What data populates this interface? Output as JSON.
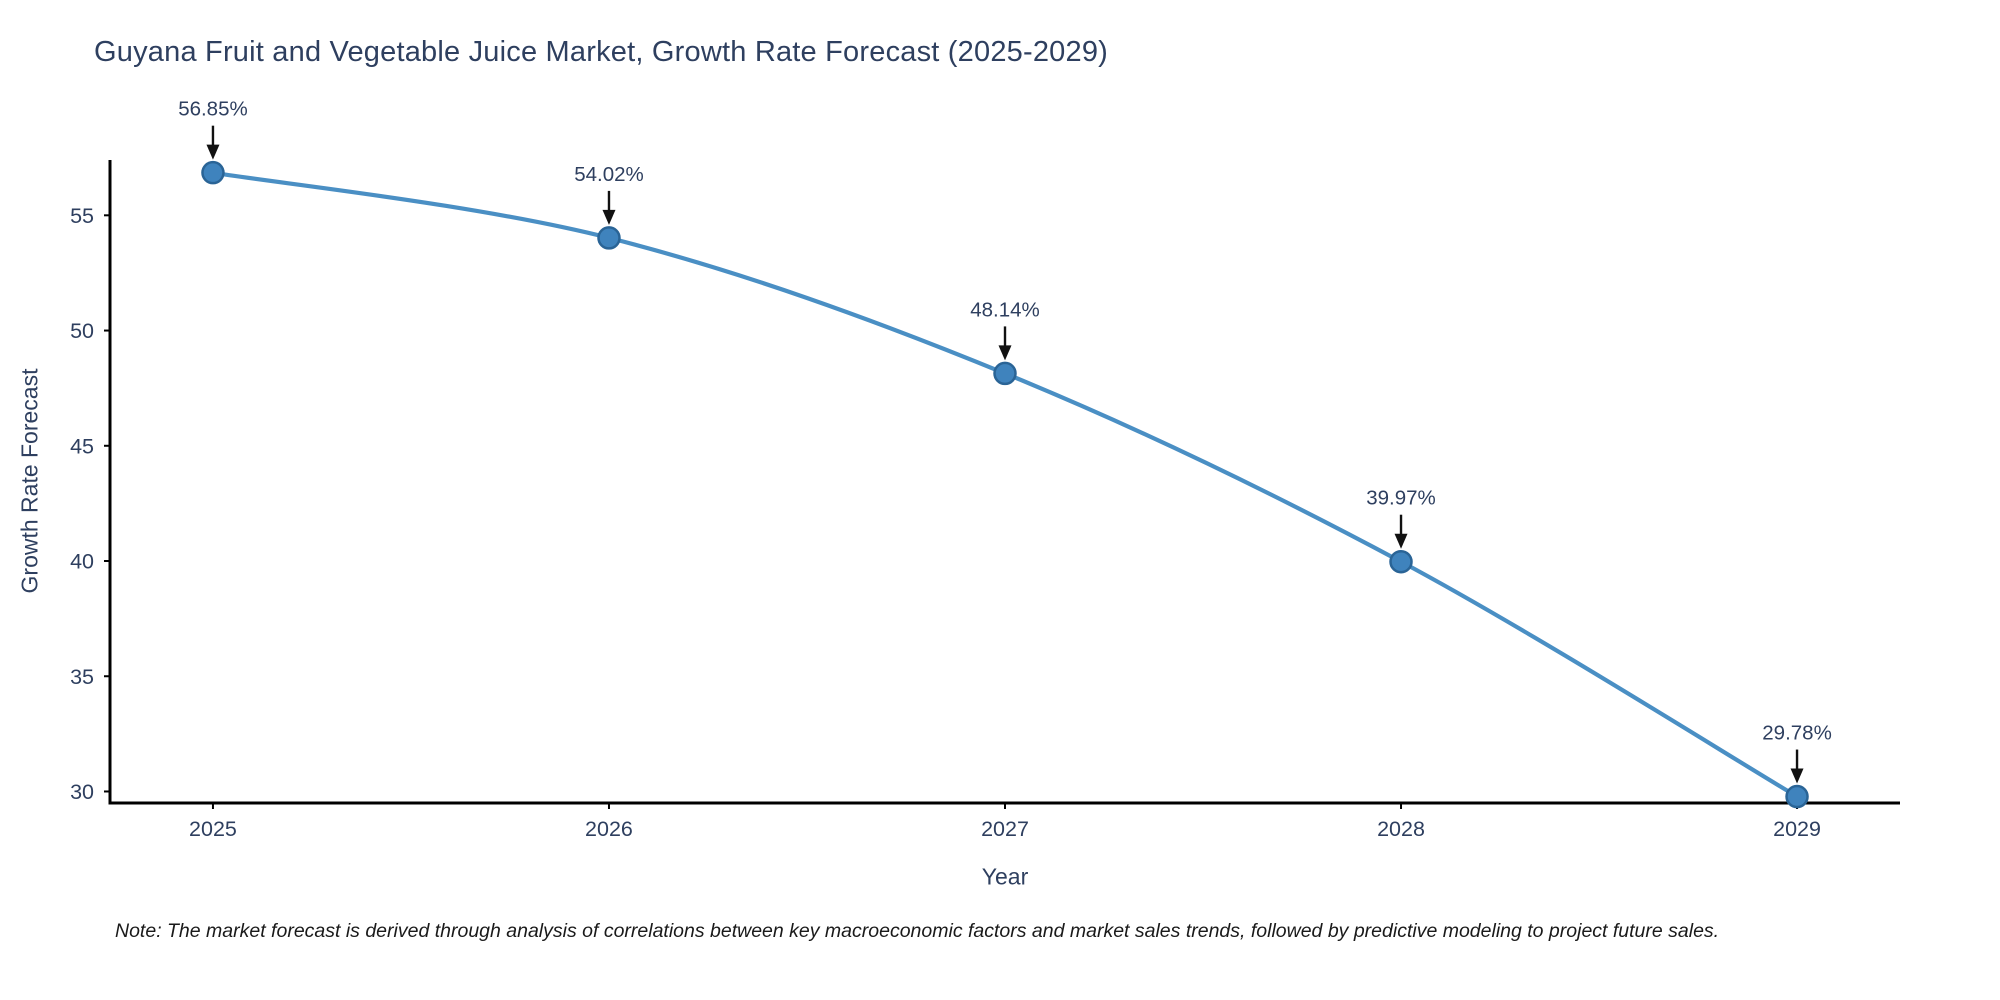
{
  "page": {
    "title": "Guyana Fruit and Vegetable Juice Market, Growth Rate Forecast (2025-2029)",
    "note": "Note: The market forecast is derived through analysis of correlations between key macroeconomic factors and market sales trends, followed by predictive modeling to project future sales."
  },
  "chart_data": {
    "type": "line",
    "title": "Guyana Fruit and Vegetable Juice Market, Growth Rate Forecast (2025-2029)",
    "xlabel": "Year",
    "ylabel": "Growth Rate Forecast",
    "x": [
      2025,
      2026,
      2027,
      2028,
      2029
    ],
    "series": [
      {
        "name": "Growth Rate Forecast",
        "values": [
          56.85,
          54.02,
          48.14,
          39.97,
          29.78
        ]
      }
    ],
    "point_labels": [
      "56.85%",
      "54.02%",
      "48.14%",
      "39.97%",
      "29.78%"
    ],
    "xticks": [
      "2025",
      "2026",
      "2027",
      "2028",
      "2029"
    ],
    "yticks": [
      30,
      35,
      40,
      45,
      50,
      55
    ],
    "xlim": [
      2024.74,
      2029.26
    ],
    "ylim": [
      29.5,
      57.4
    ],
    "grid": false,
    "legend": false,
    "line_style": "smooth",
    "annotation_arrows": true,
    "colors": {
      "line": "#4a8fc4",
      "marker_fill": "#3f83bd",
      "marker_edge": "#2a6496",
      "arrow": "#111111",
      "text": "#2e3f5f",
      "axis": "#000000",
      "note_text": "#1a1a1a"
    }
  }
}
